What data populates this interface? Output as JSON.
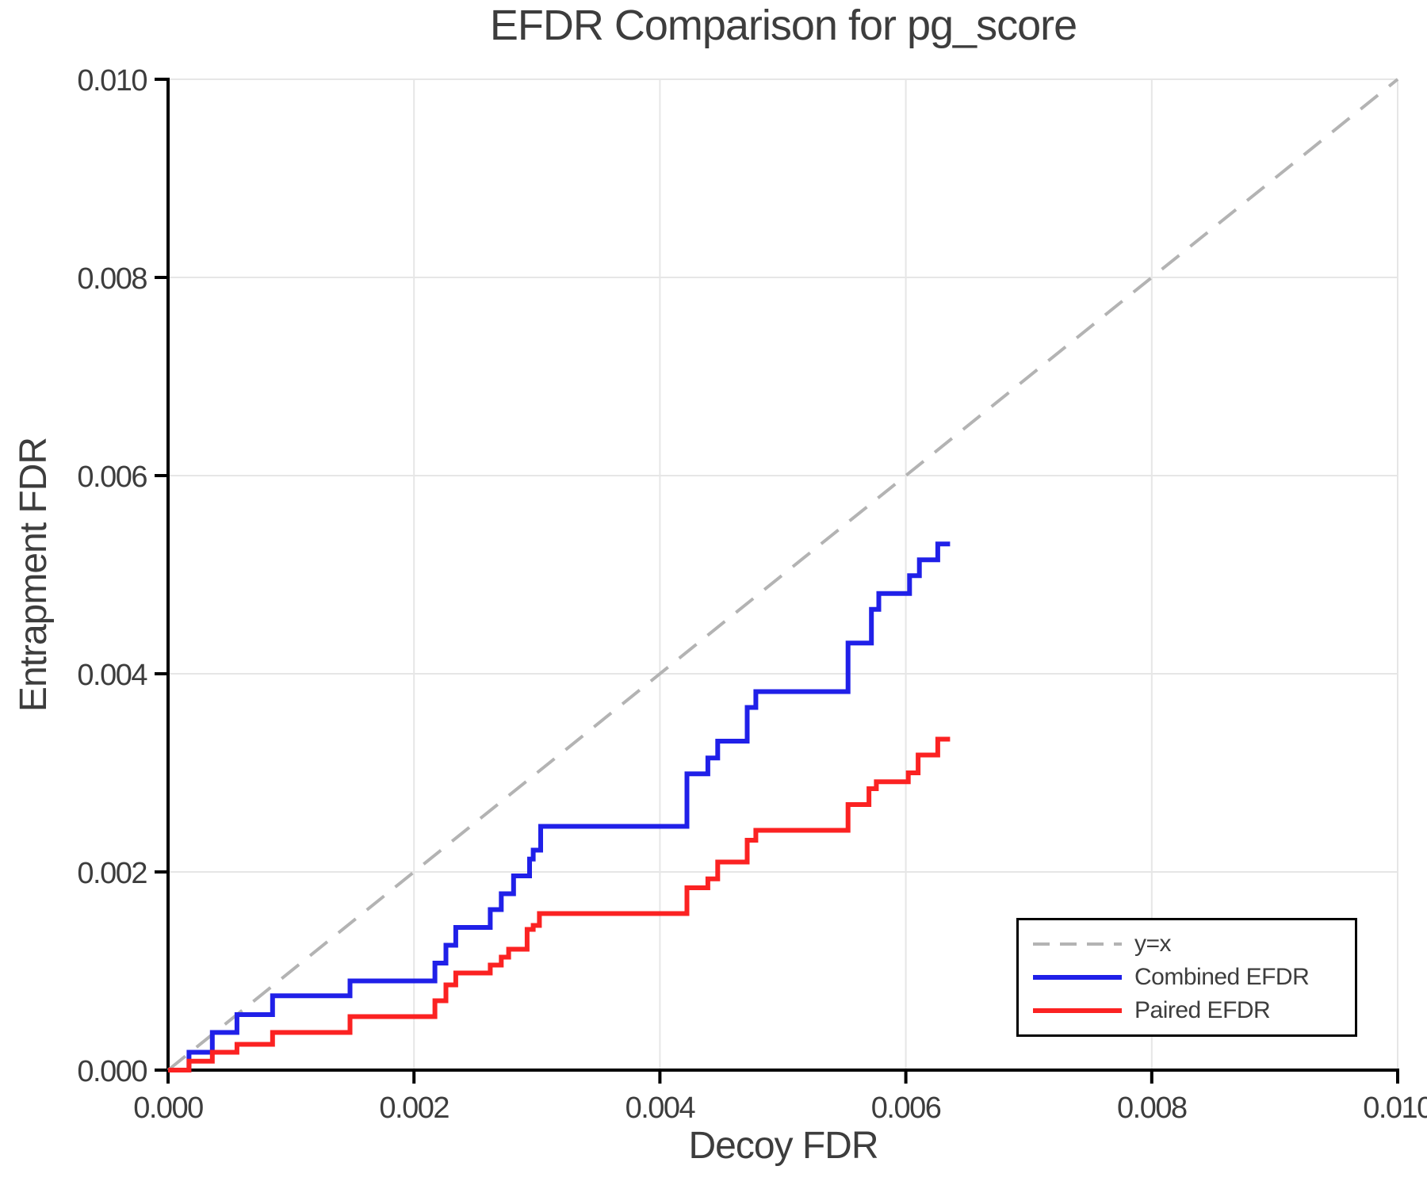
{
  "chart_data": {
    "type": "line",
    "title": "EFDR Comparison for pg_score",
    "xlabel": "Decoy FDR",
    "ylabel": "Entrapment FDR",
    "xlim": [
      0.0,
      0.01
    ],
    "ylim": [
      0.0,
      0.01
    ],
    "xticks": [
      "0.000",
      "0.002",
      "0.004",
      "0.006",
      "0.008",
      "0.010"
    ],
    "yticks": [
      "0.000",
      "0.002",
      "0.004",
      "0.006",
      "0.008",
      "0.010"
    ],
    "grid": true,
    "colors": {
      "background": "#ffffff",
      "grid": "#e6e6e6",
      "spine": "#000000",
      "text": "#3d3d3d",
      "reference": "#b3b3b3",
      "combined": "#2020e8",
      "paired": "#fb2222"
    },
    "legend": {
      "position": "lower right",
      "entries": [
        {
          "label": "y=x",
          "style": "dashed",
          "color": "#b3b3b3"
        },
        {
          "label": "Combined EFDR",
          "style": "solid",
          "color": "#2020e8"
        },
        {
          "label": "Paired EFDR",
          "style": "solid",
          "color": "#fb2222"
        }
      ]
    },
    "series": [
      {
        "name": "y=x",
        "style": "dashed",
        "color": "#b3b3b3",
        "points": [
          [
            0.0,
            0.0
          ],
          [
            0.01,
            0.01
          ]
        ]
      },
      {
        "name": "Combined EFDR",
        "style": "solid",
        "color": "#2020e8",
        "points": [
          [
            0.0,
            0.0
          ],
          [
            0.00017,
            0.0
          ],
          [
            0.00017,
            0.00018
          ],
          [
            0.00036,
            0.00018
          ],
          [
            0.00036,
            0.00038
          ],
          [
            0.00056,
            0.00038
          ],
          [
            0.00056,
            0.00056
          ],
          [
            0.00085,
            0.00056
          ],
          [
            0.00085,
            0.00075
          ],
          [
            0.00148,
            0.00075
          ],
          [
            0.00148,
            0.0009
          ],
          [
            0.00217,
            0.0009
          ],
          [
            0.00217,
            0.00108
          ],
          [
            0.00226,
            0.00108
          ],
          [
            0.00226,
            0.00126
          ],
          [
            0.00234,
            0.00126
          ],
          [
            0.00234,
            0.00144
          ],
          [
            0.00262,
            0.00144
          ],
          [
            0.00262,
            0.00162
          ],
          [
            0.00271,
            0.00162
          ],
          [
            0.00271,
            0.00178
          ],
          [
            0.00281,
            0.00178
          ],
          [
            0.00281,
            0.00196
          ],
          [
            0.00294,
            0.00196
          ],
          [
            0.00294,
            0.00213
          ],
          [
            0.00297,
            0.00213
          ],
          [
            0.00297,
            0.00222
          ],
          [
            0.00303,
            0.00222
          ],
          [
            0.00303,
            0.00246
          ],
          [
            0.00422,
            0.00246
          ],
          [
            0.00422,
            0.00299
          ],
          [
            0.00439,
            0.00299
          ],
          [
            0.00439,
            0.00315
          ],
          [
            0.00447,
            0.00315
          ],
          [
            0.00447,
            0.00332
          ],
          [
            0.00471,
            0.00332
          ],
          [
            0.00471,
            0.00366
          ],
          [
            0.00478,
            0.00366
          ],
          [
            0.00478,
            0.00382
          ],
          [
            0.00553,
            0.00382
          ],
          [
            0.00553,
            0.00431
          ],
          [
            0.00572,
            0.00431
          ],
          [
            0.00572,
            0.00465
          ],
          [
            0.00578,
            0.00465
          ],
          [
            0.00578,
            0.00481
          ],
          [
            0.00603,
            0.00481
          ],
          [
            0.00603,
            0.00499
          ],
          [
            0.00611,
            0.00499
          ],
          [
            0.00611,
            0.00515
          ],
          [
            0.00626,
            0.00515
          ],
          [
            0.00626,
            0.00531
          ],
          [
            0.00636,
            0.00531
          ]
        ]
      },
      {
        "name": "Paired EFDR",
        "style": "solid",
        "color": "#fb2222",
        "points": [
          [
            0.0,
            0.0
          ],
          [
            0.00017,
            0.0
          ],
          [
            0.00017,
            9e-05
          ],
          [
            0.00036,
            9e-05
          ],
          [
            0.00036,
            0.00018
          ],
          [
            0.00056,
            0.00018
          ],
          [
            0.00056,
            0.00026
          ],
          [
            0.00085,
            0.00026
          ],
          [
            0.00085,
            0.00038
          ],
          [
            0.00148,
            0.00038
          ],
          [
            0.00148,
            0.00054
          ],
          [
            0.00217,
            0.00054
          ],
          [
            0.00217,
            0.0007
          ],
          [
            0.00226,
            0.0007
          ],
          [
            0.00226,
            0.00086
          ],
          [
            0.00234,
            0.00086
          ],
          [
            0.00234,
            0.00098
          ],
          [
            0.00262,
            0.00098
          ],
          [
            0.00262,
            0.00106
          ],
          [
            0.00271,
            0.00106
          ],
          [
            0.00271,
            0.00114
          ],
          [
            0.00277,
            0.00114
          ],
          [
            0.00277,
            0.00122
          ],
          [
            0.00292,
            0.00122
          ],
          [
            0.00292,
            0.00142
          ],
          [
            0.00297,
            0.00142
          ],
          [
            0.00297,
            0.00146
          ],
          [
            0.00302,
            0.00146
          ],
          [
            0.00302,
            0.00158
          ],
          [
            0.00422,
            0.00158
          ],
          [
            0.00422,
            0.00184
          ],
          [
            0.00439,
            0.00184
          ],
          [
            0.00439,
            0.00193
          ],
          [
            0.00447,
            0.00193
          ],
          [
            0.00447,
            0.0021
          ],
          [
            0.00471,
            0.0021
          ],
          [
            0.00471,
            0.00232
          ],
          [
            0.00478,
            0.00232
          ],
          [
            0.00478,
            0.00242
          ],
          [
            0.00553,
            0.00242
          ],
          [
            0.00553,
            0.00268
          ],
          [
            0.0057,
            0.00268
          ],
          [
            0.0057,
            0.00284
          ],
          [
            0.00576,
            0.00284
          ],
          [
            0.00576,
            0.00291
          ],
          [
            0.00602,
            0.00291
          ],
          [
            0.00602,
            0.003
          ],
          [
            0.0061,
            0.003
          ],
          [
            0.0061,
            0.00318
          ],
          [
            0.00626,
            0.00318
          ],
          [
            0.00626,
            0.00334
          ],
          [
            0.00636,
            0.00334
          ]
        ]
      }
    ]
  }
}
